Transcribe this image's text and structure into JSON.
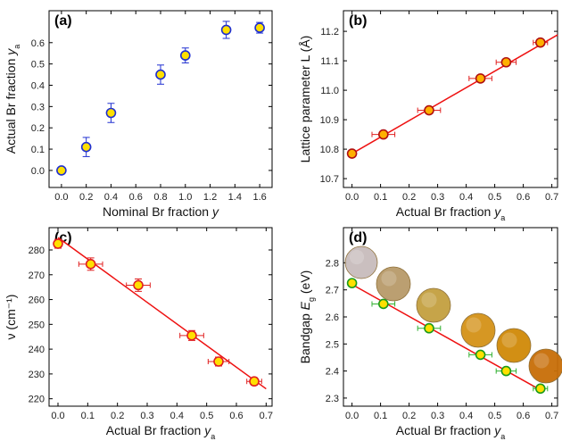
{
  "chart_data": [
    {
      "panel": "(a)",
      "type": "scatter",
      "xlabel": "Nominal Br fraction y",
      "ylabel": "Actual Br fraction y_a",
      "xlim": [
        -0.1,
        1.7
      ],
      "ylim": [
        -0.08,
        0.75
      ],
      "xticks": [
        "0.0",
        "0.2",
        "0.4",
        "0.6",
        "0.8",
        "1.0",
        "1.2",
        "1.4",
        "1.6"
      ],
      "yticks": [
        "0.0",
        "0.1",
        "0.2",
        "0.3",
        "0.4",
        "0.5",
        "0.6"
      ],
      "marker_edge": "#1f2fd0",
      "marker_fill": "#ffe000",
      "error_color": "#1f2fd0",
      "points": [
        {
          "x": 0.0,
          "y": 0.0,
          "yerr": 0.0
        },
        {
          "x": 0.2,
          "y": 0.11,
          "yerr": 0.045
        },
        {
          "x": 0.4,
          "y": 0.27,
          "yerr": 0.045
        },
        {
          "x": 0.8,
          "y": 0.45,
          "yerr": 0.045
        },
        {
          "x": 1.0,
          "y": 0.54,
          "yerr": 0.035
        },
        {
          "x": 1.33,
          "y": 0.66,
          "yerr": 0.04
        },
        {
          "x": 1.6,
          "y": 0.67,
          "yerr": 0.025
        }
      ]
    },
    {
      "panel": "(b)",
      "type": "scatter",
      "xlabel": "Actual Br fraction y_a",
      "ylabel": "Lattice parameter L (Å)",
      "xlim": [
        -0.03,
        0.72
      ],
      "ylim": [
        10.67,
        11.27
      ],
      "xticks": [
        "0.0",
        "0.1",
        "0.2",
        "0.3",
        "0.4",
        "0.5",
        "0.6",
        "0.7"
      ],
      "yticks": [
        "10.7",
        "10.8",
        "10.9",
        "11.0",
        "11.1",
        "11.2"
      ],
      "marker_edge": "#b01010",
      "marker_fill": "#ffb000",
      "error_color": "#e02020",
      "line_color": "#ee1111",
      "fit_line": {
        "x": [
          0.0,
          0.72
        ],
        "y": [
          10.785,
          11.188
        ]
      },
      "points": [
        {
          "x": 0.0,
          "y": 10.785,
          "xerr": 0.0
        },
        {
          "x": 0.11,
          "y": 10.85,
          "xerr": 0.04
        },
        {
          "x": 0.27,
          "y": 10.932,
          "xerr": 0.04
        },
        {
          "x": 0.45,
          "y": 11.04,
          "xerr": 0.04
        },
        {
          "x": 0.54,
          "y": 11.095,
          "xerr": 0.035
        },
        {
          "x": 0.66,
          "y": 11.162,
          "xerr": 0.025
        }
      ]
    },
    {
      "panel": "(c)",
      "type": "scatter",
      "xlabel": "Actual Br fraction y_a",
      "ylabel": "ν (cm⁻¹)",
      "xlim": [
        -0.03,
        0.72
      ],
      "ylim": [
        217,
        289
      ],
      "xticks": [
        "0.0",
        "0.1",
        "0.2",
        "0.3",
        "0.4",
        "0.5",
        "0.6",
        "0.7"
      ],
      "yticks": [
        "220",
        "230",
        "240",
        "250",
        "260",
        "270",
        "280"
      ],
      "marker_edge": "#e02020",
      "marker_fill": "#ffe000",
      "error_color": "#e02020",
      "line_color": "#ee1111",
      "fit_line": {
        "x": [
          0.0,
          0.7
        ],
        "y": [
          285.0,
          224.0
        ]
      },
      "points": [
        {
          "x": 0.0,
          "y": 282.5,
          "xerr": 0.0,
          "yerr": 1.8
        },
        {
          "x": 0.11,
          "y": 274.3,
          "xerr": 0.04,
          "yerr": 2.5
        },
        {
          "x": 0.27,
          "y": 265.8,
          "xerr": 0.04,
          "yerr": 2.5
        },
        {
          "x": 0.45,
          "y": 245.5,
          "xerr": 0.04,
          "yerr": 2.0
        },
        {
          "x": 0.54,
          "y": 235.0,
          "xerr": 0.035,
          "yerr": 1.8
        },
        {
          "x": 0.66,
          "y": 227.0,
          "xerr": 0.025,
          "yerr": 1.5
        }
      ]
    },
    {
      "panel": "(d)",
      "type": "scatter",
      "xlabel": "Actual Br fraction y_a",
      "ylabel": "Bandgap E_g (eV)",
      "xlim": [
        -0.03,
        0.72
      ],
      "ylim": [
        2.27,
        2.93
      ],
      "xticks": [
        "0.0",
        "0.1",
        "0.2",
        "0.3",
        "0.4",
        "0.5",
        "0.6",
        "0.7"
      ],
      "yticks": [
        "2.3",
        "2.4",
        "2.5",
        "2.6",
        "2.7",
        "2.8"
      ],
      "marker_edge": "#1a9a1a",
      "marker_fill": "#ffe000",
      "error_color": "#30b030",
      "line_color": "#ee1111",
      "fit_line": {
        "x": [
          0.0,
          0.66
        ],
        "y": [
          2.72,
          2.33
        ]
      },
      "points": [
        {
          "x": 0.0,
          "y": 2.725,
          "xerr": 0.0
        },
        {
          "x": 0.11,
          "y": 2.648,
          "xerr": 0.04
        },
        {
          "x": 0.27,
          "y": 2.558,
          "xerr": 0.04
        },
        {
          "x": 0.45,
          "y": 2.46,
          "xerr": 0.04
        },
        {
          "x": 0.54,
          "y": 2.4,
          "xerr": 0.035
        },
        {
          "x": 0.66,
          "y": 2.335,
          "xerr": 0.025
        }
      ],
      "sample_colors": [
        "#c8bcbc",
        "#b89a6a",
        "#c4a040",
        "#d49218",
        "#d08a08",
        "#c86e08"
      ]
    }
  ]
}
